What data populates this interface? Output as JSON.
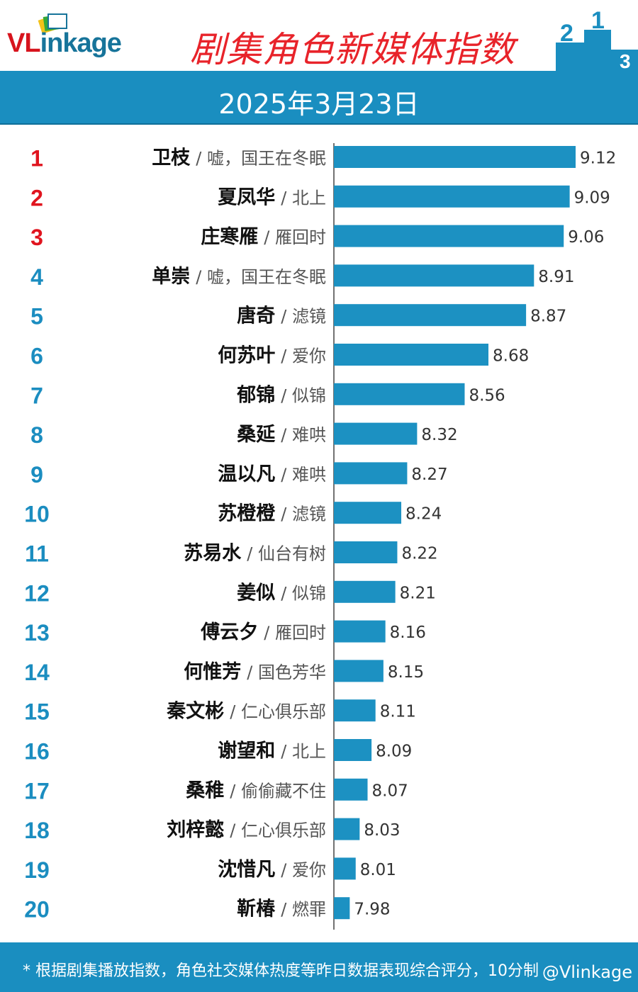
{
  "brand": {
    "logo_vl": "VL",
    "logo_rest": "inkage"
  },
  "header": {
    "title": "剧集角色新媒体指数",
    "date": "2025年3月23日"
  },
  "footer": {
    "note": "* 根据剧集播放指数，角色社交媒体热度等昨日数据表现综合评分，10分制",
    "watermark": "@Vlinkage"
  },
  "colors": {
    "bar": "#1c91c2",
    "band": "#1a8ec0",
    "rank_top3": "#e0141e",
    "rank_rest": "#1b8dc0",
    "title": "#e8232a"
  },
  "podium_labels": [
    "2",
    "1",
    "3"
  ],
  "chart_data": {
    "type": "bar",
    "orientation": "horizontal",
    "xlim": [
      7.9,
      9.12
    ],
    "grid": false,
    "legend": "none",
    "title": "剧集角色新媒体指数",
    "ranks": [
      "1",
      "2",
      "3",
      "4",
      "5",
      "6",
      "7",
      "8",
      "9",
      "10",
      "11",
      "12",
      "13",
      "14",
      "15",
      "16",
      "17",
      "18",
      "19",
      "20"
    ],
    "characters": [
      "卫枝",
      "夏凤华",
      "庄寒雁",
      "单崇",
      "唐奇",
      "何苏叶",
      "郁锦",
      "桑延",
      "温以凡",
      "苏橙橙",
      "苏易水",
      "姜似",
      "傅云夕",
      "何惟芳",
      "秦文彬",
      "谢望和",
      "桑稚",
      "刘梓懿",
      "沈惜凡",
      "靳椿"
    ],
    "dramas": [
      "/ 嘘，国王在冬眠",
      "/ 北上",
      "/ 雁回时",
      "/ 嘘，国王在冬眠",
      "/ 滤镜",
      "/ 爱你",
      "/ 似锦",
      "/ 难哄",
      "/ 难哄",
      "/ 滤镜",
      "/ 仙台有树",
      "/ 似锦",
      "/ 雁回时",
      "/ 国色芳华",
      "/ 仁心俱乐部",
      "/ 北上",
      "/ 偷偷藏不住",
      "/ 仁心俱乐部",
      "/ 爱你",
      "/ 燃罪"
    ],
    "values": [
      9.12,
      9.09,
      9.06,
      8.91,
      8.87,
      8.68,
      8.56,
      8.32,
      8.27,
      8.24,
      8.22,
      8.21,
      8.16,
      8.15,
      8.11,
      8.09,
      8.07,
      8.03,
      8.01,
      7.98
    ],
    "value_labels": [
      "9.12",
      "9.09",
      "9.06",
      "8.91",
      "8.87",
      "8.68",
      "8.56",
      "8.32",
      "8.27",
      "8.24",
      "8.22",
      "8.21",
      "8.16",
      "8.15",
      "8.11",
      "8.09",
      "8.07",
      "8.03",
      "8.01",
      "7.98"
    ]
  }
}
